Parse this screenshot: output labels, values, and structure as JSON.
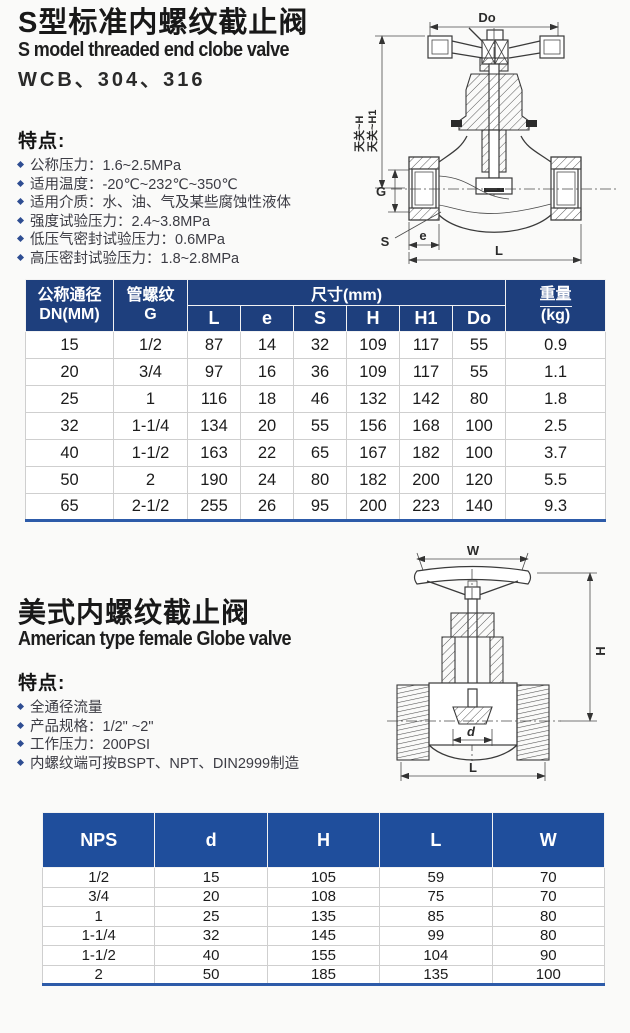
{
  "section1": {
    "title_cn": "S型标准内螺纹截止阀",
    "title_en": "S model threaded end clobe valve",
    "materials": "WCB、304、316",
    "features_heading": "特点:",
    "features": [
      "公称压力：1.6~2.5MPa",
      "适用温度：-20℃~232℃~350℃",
      "适用介质：水、油、气及某些腐蚀性液体",
      "强度试验压力：2.4~3.8MPa",
      "低压气密封试验压力：0.6MPa",
      "高压密封试验压力：1.8~2.8MPa"
    ],
    "drawing_labels": {
      "do": "Do",
      "h": "天关~H",
      "h1": "天关~H1",
      "g": "G",
      "s": "S",
      "e": "e",
      "l": "L"
    }
  },
  "table1": {
    "header": {
      "col1_line1": "公称通径",
      "col1_line2": "DN(MM)",
      "col2_line1": "管螺纹",
      "col2_line2": "G",
      "dims_label": "尺寸(mm)",
      "dim_cols": [
        "L",
        "e",
        "S",
        "H",
        "H1",
        "Do"
      ],
      "weight_line1": "重量",
      "weight_line2": "(kg)"
    },
    "rows": [
      [
        "15",
        "1/2",
        "87",
        "14",
        "32",
        "109",
        "117",
        "55",
        "0.9"
      ],
      [
        "20",
        "3/4",
        "97",
        "16",
        "36",
        "109",
        "117",
        "55",
        "1.1"
      ],
      [
        "25",
        "1",
        "116",
        "18",
        "46",
        "132",
        "142",
        "80",
        "1.8"
      ],
      [
        "32",
        "1-1/4",
        "134",
        "20",
        "55",
        "156",
        "168",
        "100",
        "2.5"
      ],
      [
        "40",
        "1-1/2",
        "163",
        "22",
        "65",
        "167",
        "182",
        "100",
        "3.7"
      ],
      [
        "50",
        "2",
        "190",
        "24",
        "80",
        "182",
        "200",
        "120",
        "5.5"
      ],
      [
        "65",
        "2-1/2",
        "255",
        "26",
        "95",
        "200",
        "223",
        "140",
        "9.3"
      ]
    ]
  },
  "section2": {
    "title_cn": "美式内螺纹截止阀",
    "title_en": "American type female Globe valve",
    "features_heading": "特点:",
    "features": [
      "全通径流量",
      "产品规格：1/2\" ~2\"",
      "工作压力：200PSI",
      "内螺纹端可按BSPT、NPT、DIN2999制造"
    ],
    "drawing_labels": {
      "w": "W",
      "h": "H",
      "d": "d",
      "l": "L"
    }
  },
  "table2": {
    "header": [
      "NPS",
      "d",
      "H",
      "L",
      "W"
    ],
    "rows": [
      [
        "1/2",
        "15",
        "105",
        "59",
        "70"
      ],
      [
        "3/4",
        "20",
        "108",
        "75",
        "70"
      ],
      [
        "1",
        "25",
        "135",
        "85",
        "80"
      ],
      [
        "1-1/4",
        "32",
        "145",
        "99",
        "80"
      ],
      [
        "1-1/2",
        "40",
        "155",
        "104",
        "90"
      ],
      [
        "2",
        "50",
        "185",
        "135",
        "100"
      ]
    ]
  },
  "colors": {
    "table1_header_bg": "#1e3f7d",
    "table2_header_bg": "#1f4e9c",
    "accent_rule": "#2d5ba9",
    "bullet": "#2e4d92"
  }
}
